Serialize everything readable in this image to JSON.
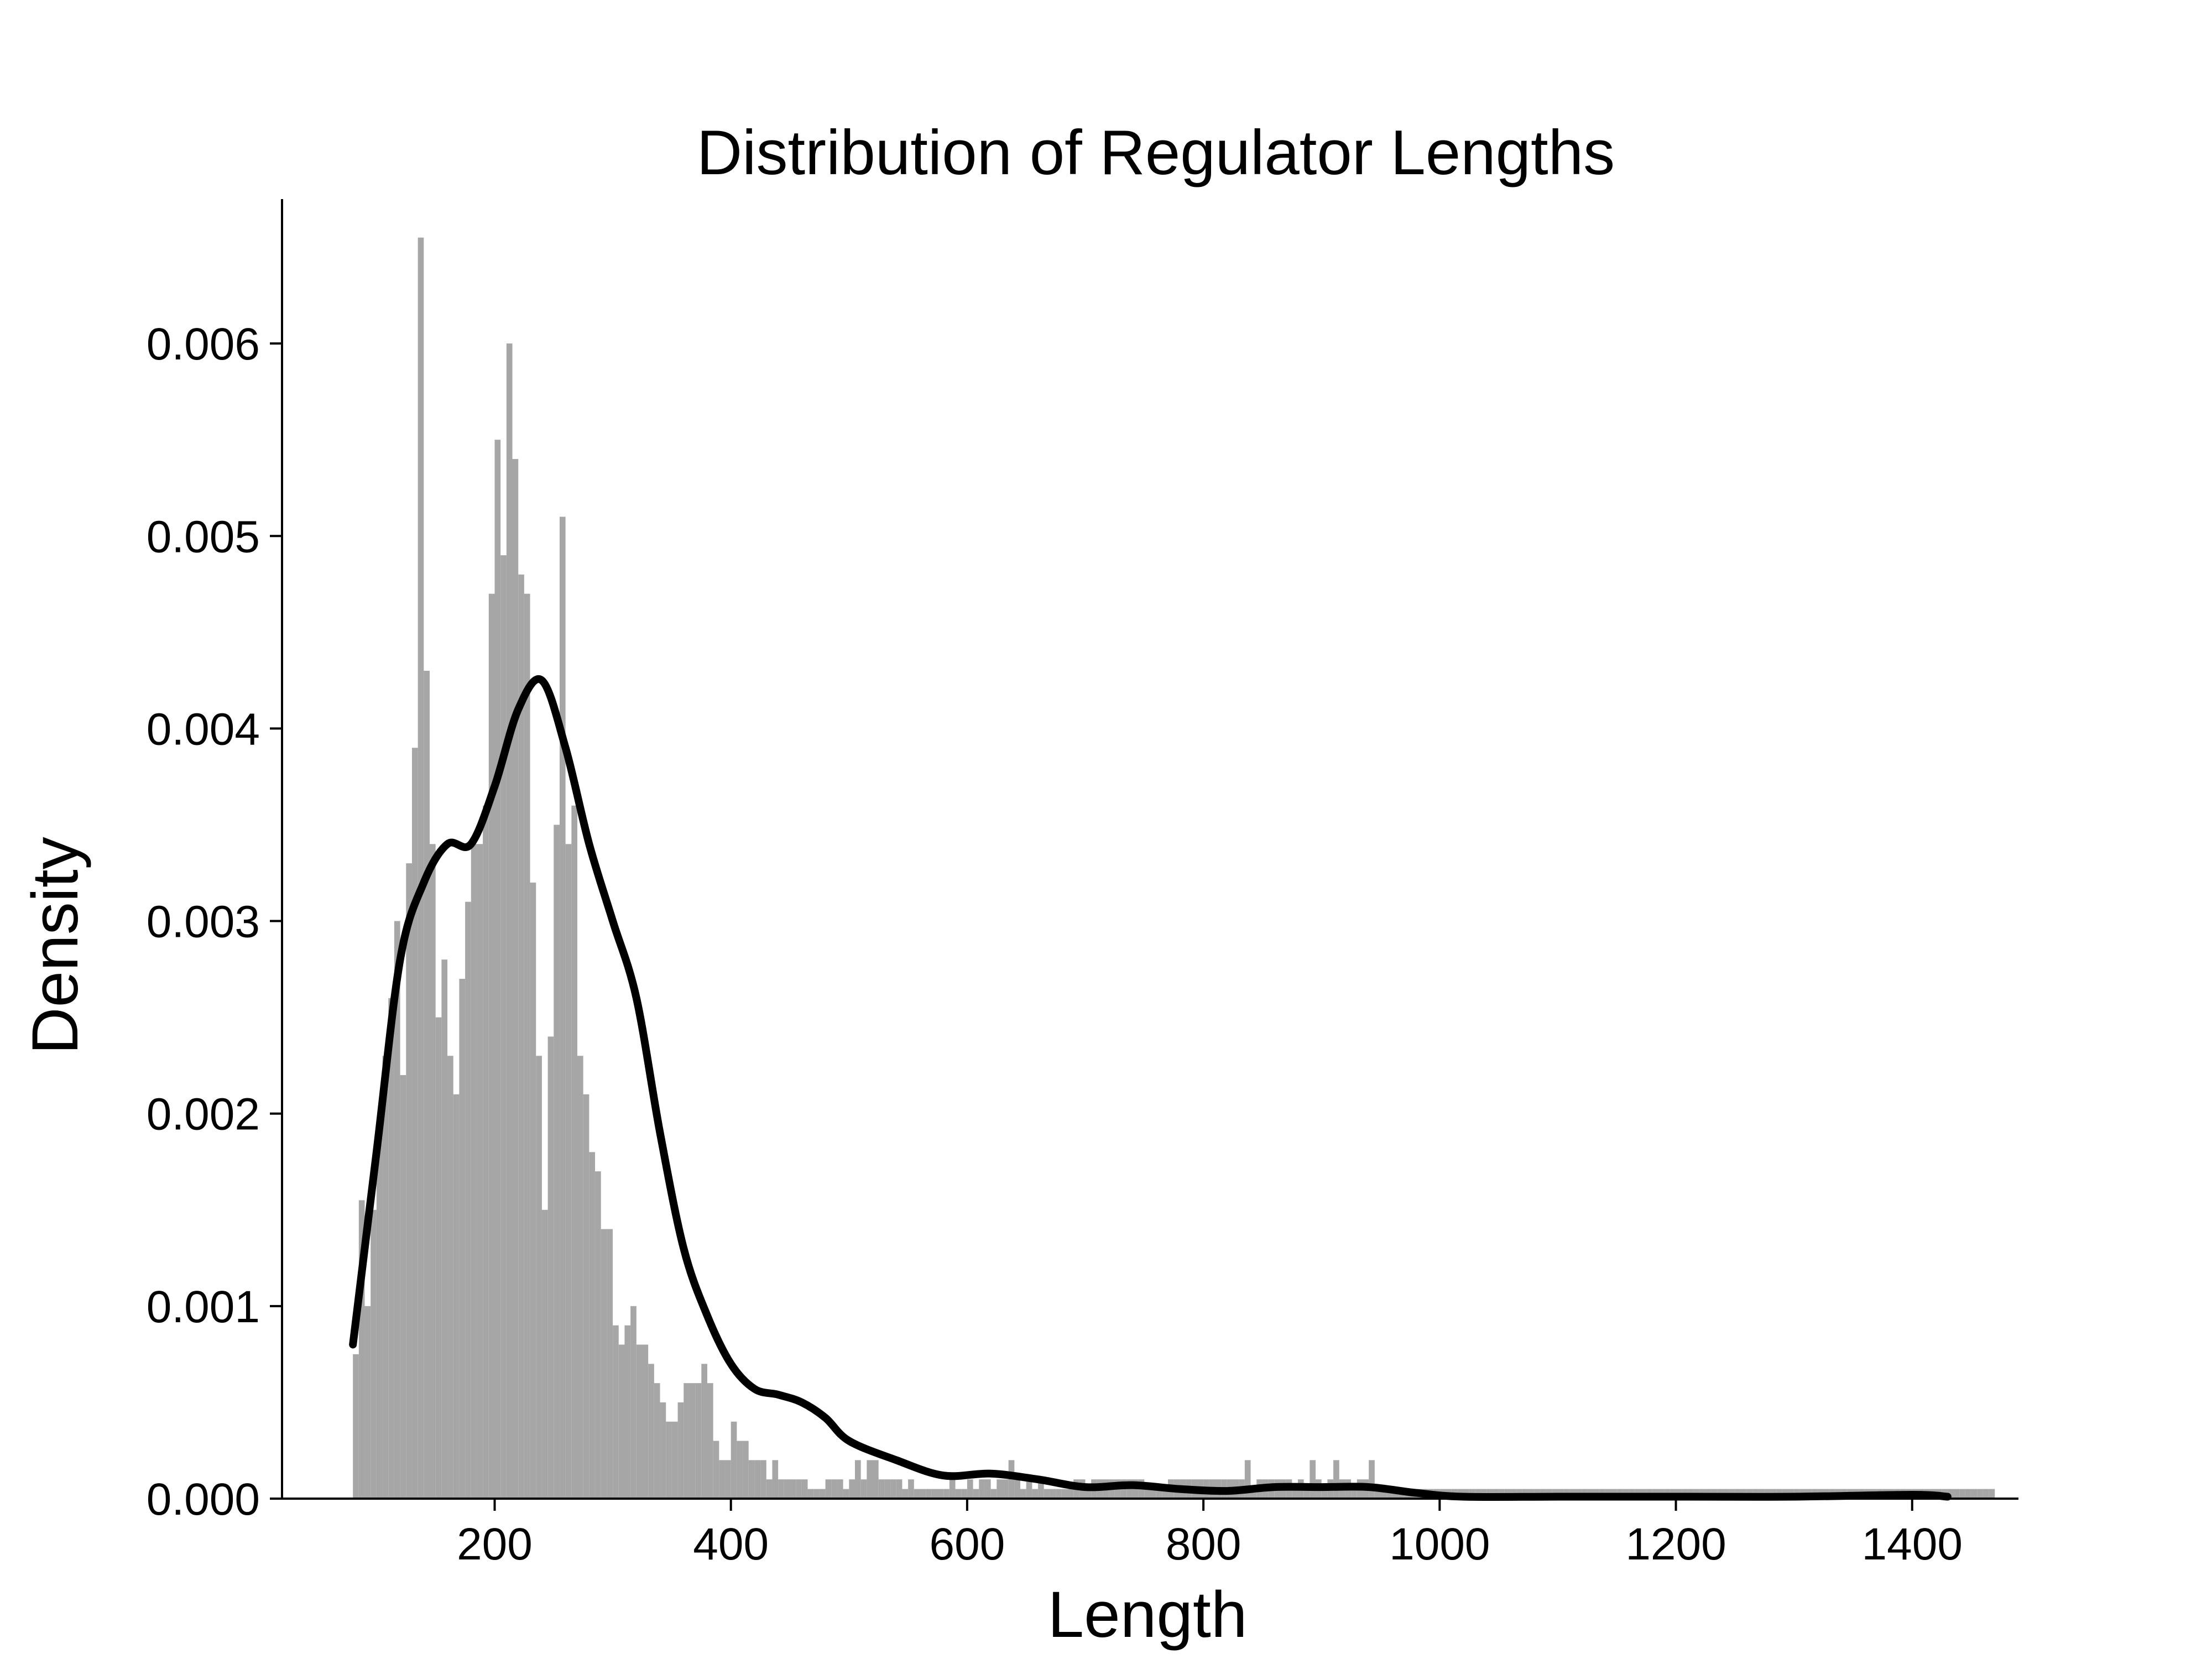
{
  "chart_data": {
    "type": "bar",
    "title": "Distribution of Regulator Lengths",
    "xlabel": "Length",
    "ylabel": "Density",
    "xlim": [
      20,
      1490
    ],
    "ylim": [
      0,
      0.00675
    ],
    "x_ticks": [
      200,
      400,
      600,
      800,
      1000,
      1200,
      1400
    ],
    "x_tick_labels": [
      "200",
      "400",
      "600",
      "800",
      "1000",
      "1200",
      "1400"
    ],
    "y_ticks": [
      0,
      0.001,
      0.002,
      0.003,
      0.004,
      0.005,
      0.006
    ],
    "y_tick_labels": [
      "0.000",
      "0.001",
      "0.002",
      "0.003",
      "0.004",
      "0.005",
      "0.006"
    ],
    "grid": false,
    "bin_start": 80,
    "bin_width": 5,
    "bar_color": "#a6a6a6",
    "kde_color": "#000000",
    "series": [
      {
        "type": "histogram",
        "values": [
          0.00075,
          0.00155,
          0.001,
          0.0015,
          0.0019,
          0.0023,
          0.0026,
          0.003,
          0.0022,
          0.0033,
          0.0039,
          0.00655,
          0.0043,
          0.0034,
          0.0025,
          0.0028,
          0.0023,
          0.0021,
          0.0027,
          0.0031,
          0.0034,
          0.0034,
          0.0036,
          0.0047,
          0.0055,
          0.0049,
          0.006,
          0.0054,
          0.0048,
          0.0047,
          0.0032,
          0.0023,
          0.0015,
          0.0024,
          0.0035,
          0.0051,
          0.0034,
          0.0036,
          0.0023,
          0.0021,
          0.0018,
          0.0017,
          0.0014,
          0.0014,
          0.0009,
          0.0008,
          0.0009,
          0.001,
          0.0008,
          0.0008,
          0.0007,
          0.0006,
          0.0005,
          0.0004,
          0.0004,
          0.0005,
          0.0006,
          0.0006,
          0.0006,
          0.0007,
          0.0006,
          0.0003,
          0.0002,
          0.0002,
          0.0004,
          0.0003,
          0.0003,
          0.0002,
          0.0002,
          0.0002,
          0.0001,
          0.0002,
          0.0001,
          0.0001,
          0.0001,
          0.0001,
          0.0001,
          5e-05,
          5e-05,
          5e-05,
          0.0001,
          0.0001,
          0.0001,
          5e-05,
          0.0001,
          0.0002,
          0.0001,
          0.0002,
          0.0002,
          0.0001,
          0.0001,
          0.0001,
          0.0001,
          5e-05,
          0.0001,
          5e-05,
          5e-05,
          5e-05,
          5e-05,
          5e-05,
          5e-05,
          0.0001,
          5e-05,
          5e-05,
          0.0001,
          5e-05,
          0.0001,
          0.0001,
          5e-05,
          0.0001,
          0.0001,
          0.0002,
          0.0001,
          5e-05,
          0.0001,
          5e-05,
          0.0001,
          5e-05,
          5e-05,
          5e-05,
          5e-05,
          5e-05,
          0.0001,
          0.0001,
          5e-05,
          0.0001,
          0.0001,
          0.0001,
          0.0001,
          0.0001,
          0.0001,
          0.0001,
          0.0001,
          0.0001,
          5e-05,
          5e-05,
          5e-05,
          5e-05,
          0.0001,
          0.0001,
          0.0001,
          0.0001,
          0.0001,
          0.0001,
          0.0001,
          0.0001,
          0.0001,
          0.0001,
          0.0001,
          0.0001,
          0.0001,
          0.0002,
          5e-05,
          0.0001,
          0.0001,
          0.0001,
          0.0001,
          0.0001,
          0.0001,
          5e-05,
          0.0001,
          5e-05,
          0.0002,
          0.0001,
          5e-05,
          0.0001,
          0.0002,
          0.0001,
          0.0001,
          5e-05,
          0.0001,
          0.0001,
          0.0002,
          5e-05,
          5e-05,
          5e-05,
          5e-05,
          5e-05,
          5e-05,
          5e-05,
          5e-05,
          5e-05,
          5e-05,
          5e-05,
          5e-05,
          5e-05,
          5e-05,
          5e-05,
          5e-05,
          5e-05,
          5e-05,
          5e-05,
          5e-05,
          5e-05,
          5e-05,
          5e-05,
          5e-05,
          5e-05,
          5e-05,
          5e-05,
          5e-05,
          5e-05,
          5e-05,
          5e-05,
          5e-05,
          5e-05,
          5e-05,
          5e-05,
          5e-05,
          5e-05,
          5e-05,
          5e-05,
          5e-05,
          5e-05,
          5e-05,
          5e-05,
          5e-05,
          5e-05,
          5e-05,
          5e-05,
          5e-05,
          5e-05,
          5e-05,
          5e-05,
          5e-05,
          5e-05,
          5e-05,
          5e-05,
          5e-05,
          5e-05,
          5e-05,
          5e-05,
          5e-05,
          5e-05,
          5e-05,
          5e-05,
          5e-05,
          5e-05,
          5e-05,
          5e-05,
          5e-05,
          5e-05,
          5e-05,
          5e-05,
          5e-05,
          5e-05,
          5e-05,
          5e-05,
          5e-05,
          5e-05,
          5e-05,
          5e-05,
          5e-05,
          5e-05,
          5e-05,
          5e-05,
          5e-05,
          5e-05,
          5e-05,
          5e-05,
          5e-05,
          5e-05,
          5e-05,
          5e-05,
          5e-05,
          5e-05,
          5e-05,
          5e-05,
          5e-05,
          5e-05,
          5e-05,
          5e-05,
          5e-05,
          5e-05,
          5e-05,
          5e-05,
          5e-05,
          5e-05
        ]
      },
      {
        "type": "kde",
        "x": [
          80,
          100,
          120,
          140,
          160,
          180,
          200,
          220,
          240,
          260,
          280,
          300,
          320,
          340,
          360,
          380,
          400,
          420,
          440,
          460,
          480,
          500,
          540,
          580,
          620,
          660,
          700,
          740,
          780,
          820,
          860,
          900,
          940,
          980,
          1020,
          1100,
          1200,
          1300,
          1400,
          1430
        ],
        "y": [
          0.0008,
          0.0018,
          0.0028,
          0.0032,
          0.0034,
          0.0034,
          0.0037,
          0.0041,
          0.00425,
          0.0039,
          0.0034,
          0.003,
          0.0026,
          0.0019,
          0.0013,
          0.00095,
          0.0007,
          0.00057,
          0.00054,
          0.0005,
          0.00042,
          0.0003,
          0.0002,
          0.00012,
          0.00013,
          0.0001,
          6e-05,
          7e-05,
          5e-05,
          4e-05,
          6e-05,
          6e-05,
          6e-05,
          3e-05,
          1e-05,
          1e-05,
          1e-05,
          1e-05,
          2e-05,
          1e-05
        ]
      }
    ]
  }
}
